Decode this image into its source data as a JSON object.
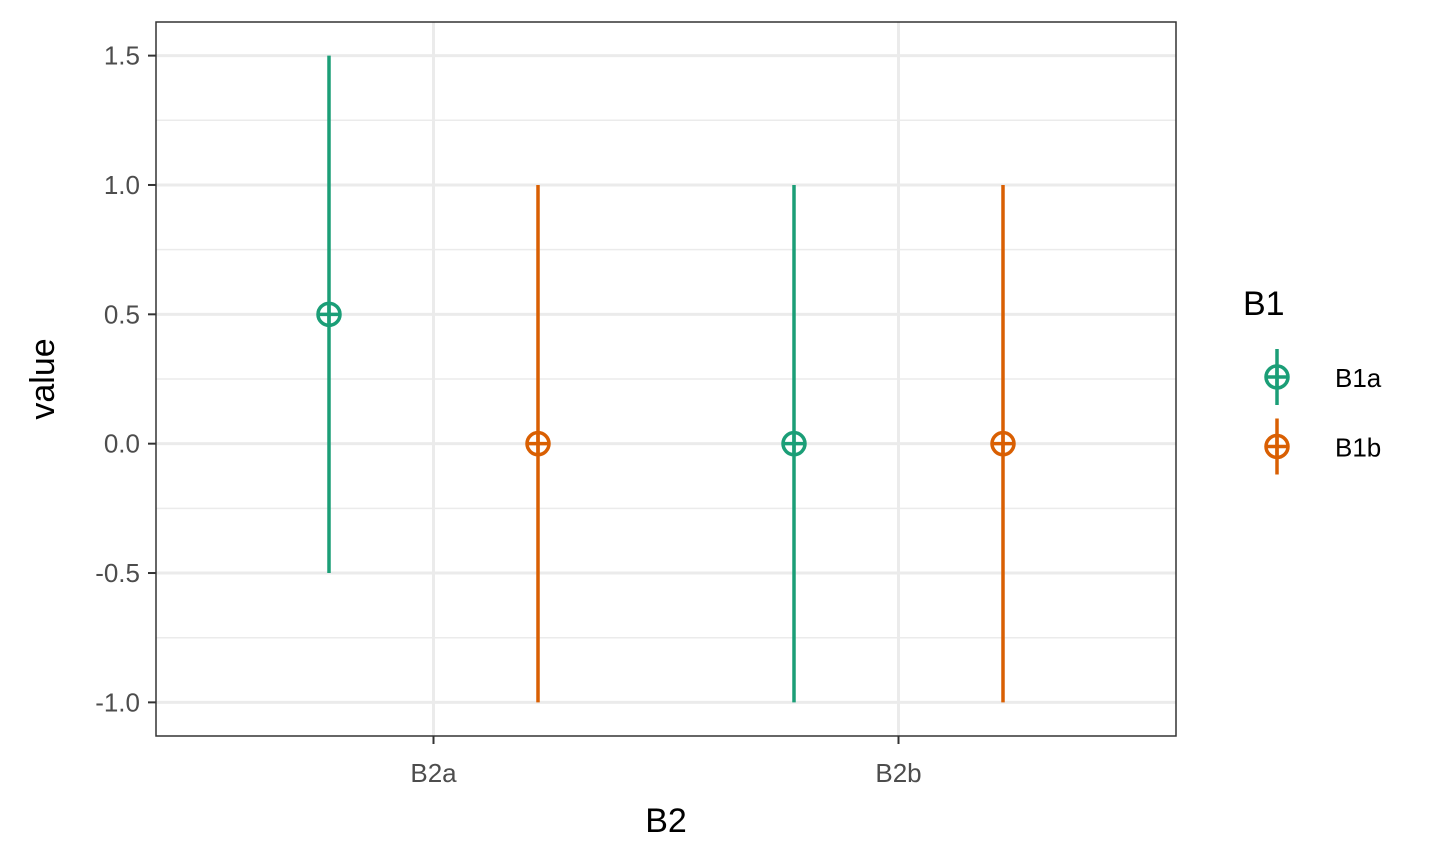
{
  "chart_data": {
    "type": "scatter",
    "variant": "pointrange",
    "xlabel": "B2",
    "ylabel": "value",
    "categories": [
      "B2a",
      "B2b"
    ],
    "ylim": [
      -1.13,
      1.63
    ],
    "yticks": [
      -1.0,
      -0.5,
      0.0,
      0.5,
      1.0,
      1.5
    ],
    "ytick_labels": [
      "-1.0",
      "-0.5",
      "0.0",
      "0.5",
      "1.0",
      "1.5"
    ],
    "grid": true,
    "legend": {
      "title": "B1",
      "placement": "right"
    },
    "series": [
      {
        "name": "B1a",
        "color": "#1b9e77",
        "points": [
          {
            "category": "B2a",
            "y": 0.5,
            "ymin": -0.5,
            "ymax": 1.5
          },
          {
            "category": "B2b",
            "y": 0.0,
            "ymin": -1.0,
            "ymax": 1.0
          }
        ]
      },
      {
        "name": "B1b",
        "color": "#d95f02",
        "points": [
          {
            "category": "B2a",
            "y": 0.0,
            "ymin": -1.0,
            "ymax": 1.0
          },
          {
            "category": "B2b",
            "y": 0.0,
            "ymin": -1.0,
            "ymax": 1.0
          }
        ]
      }
    ]
  }
}
